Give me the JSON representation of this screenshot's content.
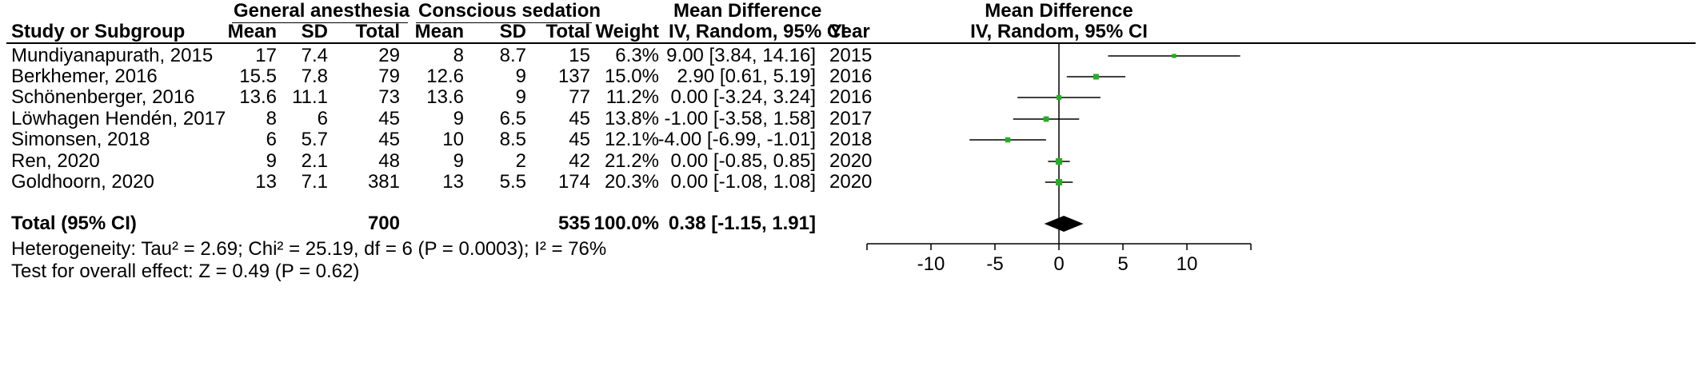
{
  "headers": {
    "group1": "General anesthesia",
    "group2": "Conscious sedation",
    "md1": "Mean Difference",
    "md2": "Mean Difference",
    "study": "Study or Subgroup",
    "mean1": "Mean",
    "sd1": "SD",
    "total1": "Total",
    "mean2": "Mean",
    "sd2": "SD",
    "total2": "Total",
    "weight": "Weight",
    "ci1": "IV, Random, 95% CI",
    "year": "Year",
    "ci2": "IV, Random, 95% CI"
  },
  "rows": [
    {
      "study": "Mundiyanapurath, 2015",
      "mean1": "17",
      "sd1": "7.4",
      "total1": "29",
      "mean2": "8",
      "sd2": "8.7",
      "total2": "15",
      "weight": "6.3%",
      "ci": "9.00 [3.84, 14.16]",
      "year": "2015"
    },
    {
      "study": "Berkhemer, 2016",
      "mean1": "15.5",
      "sd1": "7.8",
      "total1": "79",
      "mean2": "12.6",
      "sd2": "9",
      "total2": "137",
      "weight": "15.0%",
      "ci": "2.90 [0.61, 5.19]",
      "year": "2016"
    },
    {
      "study": "Schönenberger, 2016",
      "mean1": "13.6",
      "sd1": "11.1",
      "total1": "73",
      "mean2": "13.6",
      "sd2": "9",
      "total2": "77",
      "weight": "11.2%",
      "ci": "0.00 [-3.24, 3.24]",
      "year": "2016"
    },
    {
      "study": "Löwhagen Hendén, 2017",
      "mean1": "8",
      "sd1": "6",
      "total1": "45",
      "mean2": "9",
      "sd2": "6.5",
      "total2": "45",
      "weight": "13.8%",
      "ci": "-1.00 [-3.58, 1.58]",
      "year": "2017"
    },
    {
      "study": "Simonsen, 2018",
      "mean1": "6",
      "sd1": "5.7",
      "total1": "45",
      "mean2": "10",
      "sd2": "8.5",
      "total2": "45",
      "weight": "12.1%",
      "ci": "-4.00 [-6.99, -1.01]",
      "year": "2018"
    },
    {
      "study": "Ren, 2020",
      "mean1": "9",
      "sd1": "2.1",
      "total1": "48",
      "mean2": "9",
      "sd2": "2",
      "total2": "42",
      "weight": "21.2%",
      "ci": "0.00 [-0.85, 0.85]",
      "year": "2020"
    },
    {
      "study": "Goldhoorn, 2020",
      "mean1": "13",
      "sd1": "7.1",
      "total1": "381",
      "mean2": "13",
      "sd2": "5.5",
      "total2": "174",
      "weight": "20.3%",
      "ci": "0.00 [-1.08, 1.08]",
      "year": "2020"
    }
  ],
  "total": {
    "label": "Total (95% CI)",
    "total1": "700",
    "total2": "535",
    "weight": "100.0%",
    "ci": "0.38 [-1.15, 1.91]"
  },
  "heterogeneity": "Heterogeneity: Tau² = 2.69; Chi² = 25.19, df = 6 (P = 0.0003); I² = 76%",
  "overall_effect": "Test for overall effect: Z = 0.49 (P = 0.62)",
  "colors": {
    "marker": "#22b022",
    "line": "#000000"
  },
  "chart_data": {
    "type": "forest",
    "xlim": [
      -15,
      15
    ],
    "xticks": [
      -10,
      -5,
      0,
      5,
      10
    ],
    "xtick_labels": [
      "-10",
      "-5",
      "0",
      "5",
      "10"
    ],
    "series": [
      {
        "md": 9.0,
        "lo": 3.84,
        "hi": 14.16,
        "weight": 6.3
      },
      {
        "md": 2.9,
        "lo": 0.61,
        "hi": 5.19,
        "weight": 15.0
      },
      {
        "md": 0.0,
        "lo": -3.24,
        "hi": 3.24,
        "weight": 11.2
      },
      {
        "md": -1.0,
        "lo": -3.58,
        "hi": 1.58,
        "weight": 13.8
      },
      {
        "md": -4.0,
        "lo": -6.99,
        "hi": -1.01,
        "weight": 12.1
      },
      {
        "md": 0.0,
        "lo": -0.85,
        "hi": 0.85,
        "weight": 21.2
      },
      {
        "md": 0.0,
        "lo": -1.08,
        "hi": 1.08,
        "weight": 20.3
      }
    ],
    "pooled": {
      "md": 0.38,
      "lo": -1.15,
      "hi": 1.91
    }
  }
}
